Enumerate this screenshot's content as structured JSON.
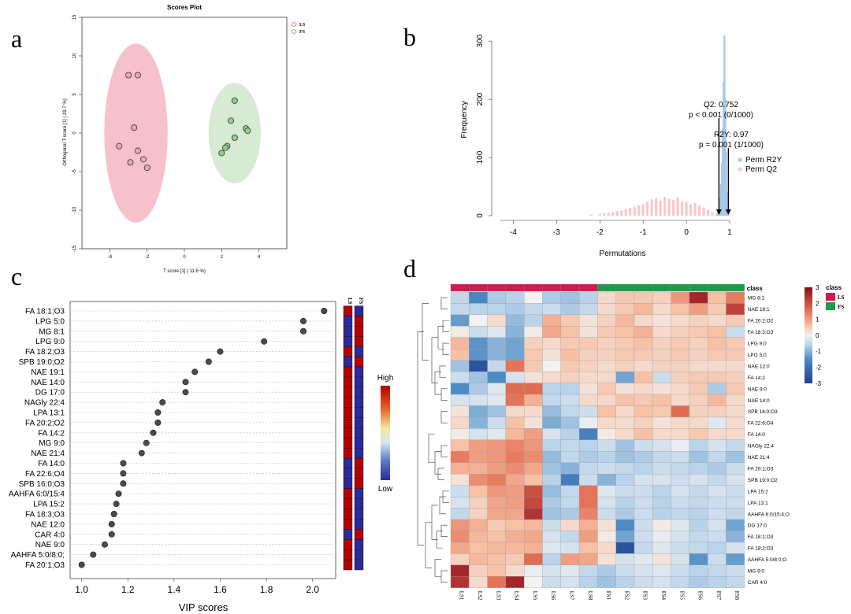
{
  "panels": {
    "a": "a",
    "b": "b",
    "c": "c",
    "d": "d"
  },
  "colors": {
    "ls_fill": "#f4b6c2",
    "ls_point": "#e9a7b4",
    "fs_fill": "#cfe6cc",
    "fs_point": "#8fcf8c",
    "r2y_bar": "#a8c8e8",
    "q2_bar": "#f7c8cc",
    "heat_low": "#1f4e9c",
    "heat_mid": "#f5f5f5",
    "heat_high": "#8b0a1a",
    "class_ls": "#d6184e",
    "class_fs": "#1e9b4a",
    "vip_high": "#b30000",
    "vip_low": "#2a2a9a"
  },
  "chart_data": [
    {
      "panel": "a",
      "type": "scatter",
      "title": "Scores Plot",
      "xlabel": "T score [1] ( 11.6 %)",
      "ylabel": "Orthogonal T score [1] ( 29.7 %)",
      "xlim": [
        -5.5,
        5.5
      ],
      "ylim": [
        -15,
        15
      ],
      "xticks": [
        -4,
        -2,
        0,
        2,
        4
      ],
      "yticks": [
        -15,
        -10,
        -5,
        0,
        5,
        10,
        15
      ],
      "legend": [
        "LS",
        "FS"
      ],
      "legend_position": "top-right",
      "series": [
        {
          "name": "LS",
          "x": [
            -3.0,
            -2.5,
            -2.7,
            -3.5,
            -2.5,
            -2.2,
            -2.9,
            -2.0
          ],
          "y": [
            7.5,
            7.5,
            0.7,
            -1.7,
            -2.3,
            -3.4,
            -3.8,
            -4.5
          ]
        },
        {
          "name": "FS",
          "x": [
            2.7,
            2.5,
            3.3,
            3.4,
            2.7,
            2.3,
            2.2,
            2.0
          ],
          "y": [
            4.2,
            1.6,
            0.6,
            0.3,
            -0.6,
            -1.7,
            -1.9,
            -2.6
          ]
        }
      ],
      "ellipses": [
        {
          "series": "LS",
          "cx": -2.6,
          "cy": 0.0,
          "rx": 1.7,
          "ry": 11.6
        },
        {
          "series": "FS",
          "cx": 2.7,
          "cy": 0.0,
          "rx": 1.4,
          "ry": 6.5
        }
      ]
    },
    {
      "panel": "b",
      "type": "bar",
      "xlabel": "Permutations",
      "ylabel": "Frequency",
      "xlim": [
        -4.3,
        1.2
      ],
      "ylim": [
        0,
        330
      ],
      "xticks": [
        -4,
        -3,
        -2,
        -1,
        0,
        1
      ],
      "yticks": [
        0,
        100,
        200,
        300
      ],
      "legend": [
        "Perm R2Y",
        "Perm Q2"
      ],
      "legend_position": "right",
      "annotations": [
        {
          "text1": "Q2: 0.752",
          "text2": "p < 0.001 (0/1000)",
          "x": 0.752
        },
        {
          "text1": "R2Y: 0.97",
          "text2": "p = 0.001 (1/1000)",
          "x": 0.97
        }
      ],
      "series": [
        {
          "name": "Perm R2Y",
          "x": [
            0.7,
            0.72,
            0.74,
            0.76,
            0.78,
            0.8,
            0.82,
            0.84,
            0.86,
            0.88,
            0.9,
            0.92,
            0.94,
            0.96
          ],
          "values": [
            3,
            6,
            10,
            18,
            30,
            55,
            90,
            150,
            230,
            310,
            200,
            110,
            40,
            8
          ]
        },
        {
          "name": "Perm Q2",
          "x": [
            -2.2,
            -2.0,
            -1.9,
            -1.8,
            -1.7,
            -1.6,
            -1.5,
            -1.4,
            -1.3,
            -1.2,
            -1.1,
            -1.0,
            -0.9,
            -0.8,
            -0.7,
            -0.6,
            -0.5,
            -0.4,
            -0.3,
            -0.2,
            -0.1,
            0.0,
            0.1,
            0.2,
            0.3,
            0.4,
            0.5,
            0.6
          ],
          "values": [
            2,
            3,
            4,
            5,
            6,
            8,
            9,
            11,
            13,
            15,
            18,
            20,
            24,
            28,
            30,
            26,
            32,
            29,
            27,
            31,
            25,
            24,
            20,
            22,
            18,
            14,
            10,
            6
          ]
        }
      ]
    },
    {
      "panel": "c",
      "type": "scatter",
      "xlabel": "VIP scores",
      "xlim": [
        0.95,
        2.1
      ],
      "xticks": [
        1.0,
        1.2,
        1.4,
        1.6,
        1.8,
        2.0
      ],
      "features": [
        "FA 18:1;O3",
        "LPG 5:0",
        "MG 8:1",
        "LPG 9:0",
        "FA 18:2;O3",
        "SPB 19:0;O2",
        "NAE 19:1",
        "NAE 14:0",
        "DG 17:0",
        "NAGly 22:4",
        "LPA 13:1",
        "FA 20:2;O2",
        "FA 14:2",
        "MG 9:0",
        "NAE 21:4",
        "FA 14:0",
        "FA 22:6;O4",
        "SPB 16:0;O3",
        "AAHFA 6:0/15:4",
        "LPA 15:2",
        "FA 18:3;O3",
        "NAE 12:0",
        "CAR 4:0",
        "NAE 9:0",
        "AAHFA 5:0/8:0;",
        "FA 20:1;O3"
      ],
      "values": [
        2.05,
        1.96,
        1.96,
        1.79,
        1.6,
        1.55,
        1.49,
        1.45,
        1.45,
        1.35,
        1.33,
        1.33,
        1.31,
        1.28,
        1.26,
        1.18,
        1.18,
        1.18,
        1.16,
        1.15,
        1.14,
        1.13,
        1.13,
        1.1,
        1.05,
        1.0
      ],
      "side_columns": [
        "LS",
        "FS"
      ],
      "side_high": [
        true,
        false,
        false,
        false,
        true,
        false,
        true,
        true,
        true,
        true,
        true,
        true,
        true,
        true,
        true,
        false,
        false,
        false,
        true,
        true,
        true,
        true,
        false,
        true,
        true,
        true
      ],
      "colorbar": {
        "high": "High",
        "low": "Low"
      }
    },
    {
      "panel": "d",
      "type": "heatmap",
      "columns": [
        "LS1",
        "LS2",
        "LS3",
        "LS4",
        "LS5",
        "LS6",
        "LS7",
        "LS8",
        "FS1",
        "FS2",
        "FS3",
        "FS4",
        "FS5",
        "FS6",
        "FS7",
        "FS8"
      ],
      "column_class": [
        "LS",
        "LS",
        "LS",
        "LS",
        "LS",
        "LS",
        "LS",
        "LS",
        "FS",
        "FS",
        "FS",
        "FS",
        "FS",
        "FS",
        "FS",
        "FS"
      ],
      "class_label": "class",
      "rows": [
        "MG 8:1",
        "NAE 19:1",
        "FA 20:2;O2",
        "FA 18:3;O3",
        "LPG 9:0",
        "LPG 5:0",
        "NAE 12:0",
        "FA 14:2",
        "NAE 9:0",
        "NAE 14:0",
        "SPB 16:0;O3",
        "FA 22:6;O4",
        "FA 14:0",
        "NAGly 22:4",
        "NAE 21:4",
        "FA 20:1;O3",
        "SPB 19:0;O2",
        "LPA 15:2",
        "LPA 13:1",
        "AAHFA 6:0/15:4;O",
        "DG 17:0",
        "FA 18:1;O3",
        "FA 18:2;O3",
        "AAHFA 5:0/8:0;O",
        "MG 9:0",
        "CAR 4:0"
      ],
      "values": [
        [
          -0.5,
          -1.6,
          -0.7,
          -0.6,
          0.0,
          -0.7,
          -0.8,
          -0.6,
          0.3,
          0.5,
          0.5,
          0.4,
          1.1,
          2.6,
          0.6,
          1.4
        ],
        [
          -0.5,
          -0.6,
          -0.6,
          -0.7,
          -0.5,
          -0.4,
          -0.7,
          -0.5,
          0.3,
          0.5,
          0.7,
          0.3,
          0.6,
          1.0,
          0.5,
          2.2
        ],
        [
          -1.3,
          0.0,
          0.3,
          -0.9,
          -0.6,
          0.8,
          0.5,
          0.2,
          0.4,
          0.7,
          0.3,
          0.2,
          0.3,
          0.4,
          0.3,
          0.5
        ],
        [
          0.1,
          -0.4,
          -0.2,
          -1.0,
          0.1,
          0.9,
          0.6,
          0.2,
          0.5,
          0.6,
          0.8,
          0.3,
          0.4,
          0.5,
          0.6,
          -0.4
        ],
        [
          0.7,
          -1.4,
          -1.0,
          -1.2,
          0.4,
          0.3,
          0.5,
          0.5,
          0.4,
          0.5,
          0.6,
          0.4,
          0.5,
          0.4,
          0.6,
          0.5
        ],
        [
          0.6,
          -1.4,
          -1.0,
          -1.2,
          0.5,
          0.2,
          0.6,
          0.4,
          0.4,
          0.5,
          0.5,
          0.4,
          0.5,
          0.4,
          0.5,
          0.5
        ],
        [
          -0.8,
          -2.6,
          -0.5,
          1.5,
          0.5,
          0.0,
          0.5,
          0.4,
          0.3,
          0.4,
          0.3,
          0.4,
          0.4,
          0.3,
          0.3,
          0.3
        ],
        [
          -0.4,
          -0.8,
          -1.5,
          -0.3,
          0.2,
          0.3,
          0.4,
          0.3,
          0.3,
          -1.2,
          0.6,
          -0.4,
          0.4,
          0.5,
          0.5,
          0.4
        ],
        [
          -1.5,
          -0.7,
          -0.2,
          1.6,
          1.6,
          -0.6,
          -0.6,
          0.2,
          0.5,
          0.2,
          0.3,
          0.2,
          0.3,
          0.5,
          -0.7,
          0.5
        ],
        [
          -0.3,
          -0.3,
          -0.2,
          1.5,
          0.8,
          -0.5,
          -0.4,
          0.3,
          0.3,
          0.6,
          0.5,
          0.6,
          0.3,
          0.4,
          0.7,
          0.3
        ],
        [
          0.2,
          -1.1,
          -0.8,
          0.3,
          0.3,
          -0.9,
          -0.5,
          -0.4,
          0.6,
          0.3,
          0.6,
          0.5,
          1.6,
          0.4,
          0.4,
          0.3
        ],
        [
          0.3,
          -1.0,
          -0.4,
          0.6,
          0.2,
          -1.1,
          -0.8,
          -0.1,
          0.3,
          0.3,
          0.4,
          0.2,
          0.3,
          0.3,
          -0.2,
          0.3
        ],
        [
          0.1,
          -0.3,
          -0.2,
          0.7,
          1.0,
          -0.3,
          -0.6,
          -1.7,
          0.1,
          0.3,
          0.6,
          0.3,
          0.3,
          0.5,
          0.3,
          0.3
        ],
        [
          0.6,
          1.0,
          1.1,
          1.3,
          1.1,
          -0.6,
          -0.5,
          -0.6,
          -0.4,
          -0.8,
          -0.4,
          -0.3,
          -0.1,
          -0.6,
          -0.3,
          -0.5
        ],
        [
          1.4,
          1.0,
          1.1,
          1.4,
          1.2,
          -0.9,
          -0.5,
          -0.7,
          -0.6,
          -0.8,
          -0.7,
          -0.5,
          -0.4,
          -0.8,
          -0.5,
          -0.8
        ],
        [
          0.8,
          0.8,
          1.0,
          1.2,
          0.9,
          -0.8,
          -1.0,
          -0.5,
          -0.4,
          -0.5,
          -0.6,
          -0.4,
          -0.5,
          -0.6,
          -0.7,
          -0.4
        ],
        [
          0.2,
          1.2,
          1.4,
          0.9,
          0.6,
          -0.6,
          -1.8,
          -0.4,
          -1.0,
          -0.6,
          -0.3,
          -0.3,
          -0.4,
          -0.3,
          -0.5,
          -0.3
        ],
        [
          -0.4,
          0.6,
          1.1,
          1.0,
          2.0,
          -0.9,
          -0.5,
          1.5,
          -0.2,
          -0.4,
          -0.4,
          -0.6,
          -0.3,
          -0.5,
          -0.3,
          -0.4
        ],
        [
          -0.3,
          0.4,
          0.9,
          1.0,
          2.1,
          -0.7,
          -0.5,
          1.5,
          -0.3,
          -0.6,
          -0.4,
          -0.6,
          -0.4,
          -0.5,
          -0.4,
          -0.4
        ],
        [
          -0.5,
          0.4,
          0.9,
          0.9,
          2.4,
          -0.8,
          -0.7,
          1.3,
          -0.4,
          -0.7,
          -0.4,
          -0.6,
          -0.5,
          -0.6,
          -0.4,
          -0.5
        ],
        [
          1.1,
          0.8,
          0.5,
          0.6,
          0.7,
          -0.4,
          0.3,
          0.8,
          0.2,
          -1.5,
          -0.4,
          0.1,
          -0.2,
          -0.6,
          -0.3,
          -1.2
        ],
        [
          1.2,
          0.7,
          0.6,
          0.8,
          0.9,
          -0.3,
          -0.5,
          1.0,
          0.1,
          -1.2,
          -0.4,
          -0.1,
          -0.3,
          -0.5,
          -0.4,
          -1.0
        ],
        [
          0.9,
          0.6,
          0.7,
          0.7,
          0.8,
          -0.2,
          -0.3,
          0.6,
          0.3,
          -2.6,
          -0.5,
          -0.2,
          -0.4,
          -0.5,
          -0.6,
          -0.3
        ],
        [
          0.4,
          0.7,
          0.6,
          0.5,
          1.6,
          -0.6,
          1.0,
          0.9,
          0.2,
          -0.3,
          -0.2,
          0.2,
          -0.3,
          -1.4,
          -0.4,
          -1.3
        ],
        [
          2.6,
          0.4,
          0.6,
          0.3,
          -0.1,
          -0.3,
          -0.2,
          -0.5,
          -0.7,
          -0.4,
          -0.3,
          -0.2,
          -0.4,
          -0.6,
          -0.5,
          -0.4
        ],
        [
          2.4,
          0.3,
          1.5,
          2.6,
          0.0,
          -0.4,
          -0.3,
          -0.6,
          -0.8,
          -0.6,
          -0.4,
          -0.3,
          -0.5,
          -0.7,
          -0.6,
          -0.5
        ]
      ],
      "colorbar": {
        "min": -3,
        "max": 3,
        "ticks": [
          3,
          2,
          1,
          0,
          -1,
          -2,
          -3
        ]
      },
      "legend": [
        "LS",
        "FS"
      ],
      "legend_title": "class"
    }
  ]
}
